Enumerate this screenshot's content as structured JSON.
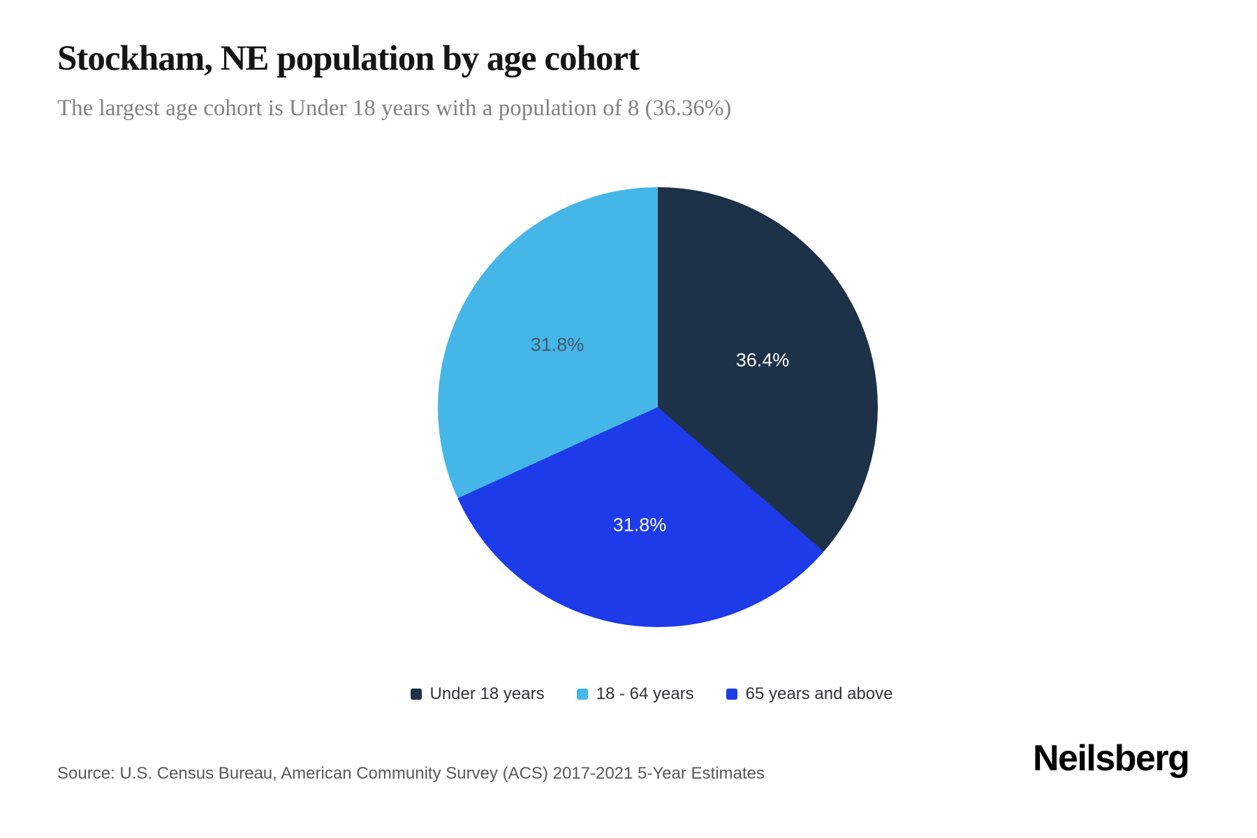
{
  "header": {
    "title": "Stockham, NE population by age cohort",
    "subtitle": "The largest age cohort is Under 18 years with a population of 8 (36.36%)"
  },
  "chart_data": {
    "type": "pie",
    "title": "Stockham, NE population by age cohort",
    "subtitle": "The largest age cohort is Under 18 years with a population of 8 (36.36%)",
    "largest_cohort": {
      "label": "Under 18 years",
      "population": 8,
      "share_pct": 36.36
    },
    "slices": [
      {
        "label": "Under 18 years",
        "percent": 36.4,
        "data_label": "36.4%",
        "color": "#1d3148",
        "label_color": "#ffffff"
      },
      {
        "label": "18 - 64 years",
        "percent": 31.8,
        "data_label": "31.8%",
        "color": "#45b6e8",
        "label_color": "#44596b"
      },
      {
        "label": "65 years and above",
        "percent": 31.8,
        "data_label": "31.8%",
        "color": "#1d3be8",
        "label_color": "#ffffff"
      }
    ],
    "clockwise_order_from_top": [
      0,
      2,
      1
    ],
    "start_angle_deg": 0,
    "legend_position": "bottom-center",
    "grid": false
  },
  "footer": {
    "source": "Source: U.S. Census Bureau, American Community Survey (ACS) 2017-2021 5-Year Estimates",
    "brand": "Neilsberg"
  }
}
